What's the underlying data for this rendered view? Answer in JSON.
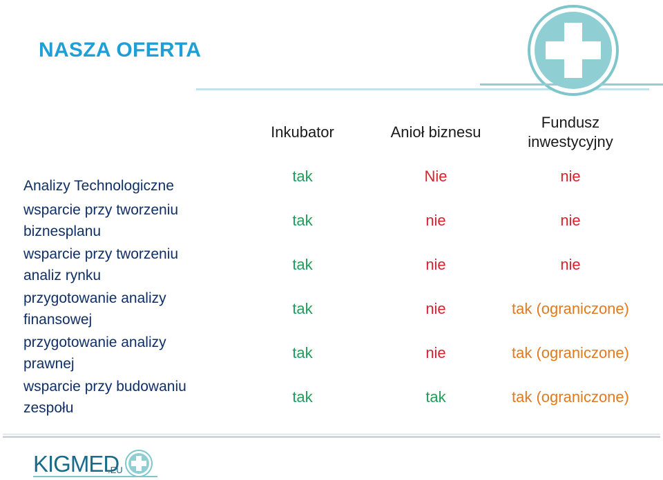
{
  "slide": {
    "title": "NASZA OFERTA"
  },
  "columns": [
    {
      "lines": [
        "Inkubator"
      ]
    },
    {
      "lines": [
        "Anioł biznesu"
      ]
    },
    {
      "lines": [
        "Fundusz",
        "inwestycyjny"
      ]
    }
  ],
  "rows": [
    {
      "label_lines": [
        "Analizy Technologiczne"
      ],
      "values": [
        "tak",
        "Nie",
        "nie"
      ]
    },
    {
      "label_lines": [
        "wsparcie przy tworzeniu",
        "biznesplanu"
      ],
      "values": [
        "tak",
        "nie",
        "nie"
      ]
    },
    {
      "label_lines": [
        "wsparcie przy tworzeniu",
        "analiz rynku"
      ],
      "values": [
        "tak",
        "nie",
        "nie"
      ]
    },
    {
      "label_lines": [
        "przygotowanie analizy",
        "finansowej"
      ],
      "values": [
        "tak",
        "nie",
        "tak (ograniczone)"
      ]
    },
    {
      "label_lines": [
        "przygotowanie analizy",
        "prawnej"
      ],
      "values": [
        "tak",
        "nie",
        "tak (ograniczone)"
      ]
    },
    {
      "label_lines": [
        "wsparcie przy budowaniu",
        "zespołu"
      ],
      "values": [
        "tak",
        "tak",
        "tak (ograniczone)"
      ]
    }
  ],
  "colors": {
    "title": "#1f9fd6",
    "tak": "#1e9e5a",
    "nie": "#d5232f",
    "tak_limited": "#e07a1f",
    "label": "#0f2f66",
    "logo_teal": "#7fc6cc"
  },
  "logo": {
    "main": "KIGMED",
    "suffix": ".EU"
  },
  "icons": {
    "top": "medical-cross-icon",
    "bottom": "medical-cross-icon"
  }
}
